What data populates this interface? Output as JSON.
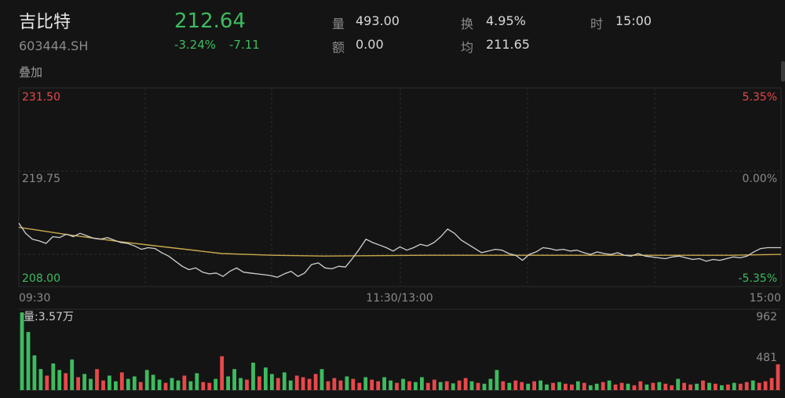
{
  "header": {
    "name": "吉比特",
    "code": "603444.SH",
    "price": "212.64",
    "change_pct": "-3.24%",
    "change_abs": "-7.11",
    "stats": [
      {
        "label": "量",
        "value": "493.00"
      },
      {
        "label": "换",
        "value": "4.95%"
      },
      {
        "label": "时",
        "value": "15:00"
      },
      {
        "label": "额",
        "value": "0.00"
      },
      {
        "label": "均",
        "value": "211.65"
      }
    ],
    "overlay_label": "叠加"
  },
  "colors": {
    "up": "#e8484a",
    "down": "#3dbb5f",
    "price_line": "#d0d0d0",
    "avg_line": "#c9a94b",
    "grid": "#2c2c2c",
    "axis_text": "#8a8a8a"
  },
  "chart_data": [
    {
      "type": "line",
      "x_range": [
        "09:30",
        "15:00"
      ],
      "xticks": [
        "09:30",
        "11:30/13:00",
        "15:00"
      ],
      "ylim": [
        208.0,
        231.5
      ],
      "yticks_left": [
        "231.50",
        "219.75",
        "208.00"
      ],
      "yticks_right": [
        "5.35%",
        "0.00%",
        "-5.35%"
      ],
      "grid": true,
      "series": [
        {
          "role": "price",
          "values": [
            215.5,
            214.3,
            213.6,
            213.4,
            213.1,
            213.9,
            213.8,
            214.2,
            213.9,
            214.3,
            214.0,
            213.7,
            213.6,
            213.8,
            213.5,
            213.2,
            213.1,
            212.8,
            212.4,
            212.6,
            212.5,
            212.0,
            211.6,
            211.0,
            210.4,
            210.0,
            210.2,
            209.7,
            209.5,
            209.6,
            209.2,
            209.8,
            210.2,
            209.7,
            209.6,
            209.5,
            209.4,
            209.3,
            209.1,
            209.5,
            209.8,
            209.2,
            209.6,
            210.6,
            210.8,
            210.2,
            210.1,
            210.4,
            210.3,
            211.3,
            212.4,
            213.6,
            213.2,
            212.9,
            212.6,
            212.2,
            212.7,
            212.3,
            212.6,
            213.0,
            212.8,
            213.2,
            213.9,
            214.8,
            214.3,
            213.5,
            213.0,
            212.5,
            212.0,
            212.2,
            212.4,
            212.3,
            211.9,
            211.7,
            211.1,
            211.8,
            212.1,
            212.6,
            212.5,
            212.3,
            212.4,
            212.2,
            212.3,
            212.0,
            211.8,
            212.1,
            211.9,
            211.8,
            212.0,
            211.7,
            211.6,
            211.9,
            211.6,
            211.5,
            211.4,
            211.3,
            211.5,
            211.6,
            211.4,
            211.2,
            211.3,
            211.0,
            211.2,
            211.1,
            211.3,
            211.5,
            211.4,
            211.6,
            212.1,
            212.5,
            212.6,
            212.6,
            212.6
          ]
        },
        {
          "role": "average",
          "values": [
            215.0,
            214.1,
            213.3,
            212.6,
            211.9,
            211.7,
            211.6,
            211.65,
            211.7,
            211.7,
            211.7,
            211.7,
            211.7,
            211.7,
            211.7,
            211.8
          ]
        }
      ]
    },
    {
      "type": "bar",
      "label": "量:3.57万",
      "yticks": [
        "962",
        "481"
      ],
      "ylim": [
        0,
        962
      ],
      "direction": [
        "down",
        "down",
        "down",
        "down",
        "up",
        "down",
        "down",
        "up",
        "down",
        "up",
        "down",
        "down",
        "up",
        "up",
        "down",
        "down",
        "up",
        "down",
        "down",
        "up",
        "down",
        "down",
        "down",
        "up",
        "down",
        "down",
        "up",
        "down",
        "down",
        "up",
        "up",
        "down",
        "up",
        "down",
        "down",
        "down",
        "up",
        "down",
        "up",
        "down",
        "down",
        "up",
        "down",
        "down",
        "up",
        "up",
        "up",
        "up",
        "down",
        "up",
        "up",
        "up",
        "down",
        "up",
        "up",
        "down",
        "up",
        "up",
        "down",
        "down",
        "up",
        "down",
        "up",
        "down",
        "down",
        "up",
        "up",
        "down",
        "up",
        "down",
        "up",
        "up",
        "down",
        "up",
        "down",
        "down",
        "down",
        "up",
        "down",
        "up",
        "up",
        "down",
        "up",
        "down",
        "down",
        "up",
        "down",
        "up",
        "up",
        "down",
        "up",
        "down",
        "down",
        "up",
        "down",
        "up",
        "up",
        "down",
        "up",
        "up",
        "down",
        "up",
        "down",
        "up",
        "up",
        "down",
        "up",
        "up",
        "down",
        "up",
        "down",
        "up",
        "down",
        "up",
        "down",
        "up",
        "up",
        "down",
        "up",
        "up",
        "up",
        "up"
      ],
      "values": [
        962,
        720,
        430,
        260,
        180,
        330,
        250,
        210,
        380,
        160,
        200,
        140,
        260,
        120,
        180,
        110,
        220,
        140,
        170,
        100,
        250,
        190,
        130,
        90,
        150,
        120,
        180,
        110,
        210,
        100,
        90,
        140,
        420,
        170,
        260,
        150,
        130,
        340,
        170,
        280,
        200,
        150,
        220,
        120,
        180,
        160,
        140,
        200,
        260,
        110,
        150,
        120,
        170,
        140,
        90,
        160,
        130,
        110,
        160,
        120,
        90,
        140,
        110,
        100,
        160,
        90,
        130,
        100,
        110,
        85,
        120,
        150,
        110,
        90,
        80,
        140,
        250,
        110,
        90,
        120,
        100,
        80,
        110,
        120,
        70,
        90,
        100,
        80,
        70,
        110,
        90,
        60,
        80,
        100,
        120,
        70,
        90,
        80,
        60,
        110,
        70,
        90,
        100,
        80,
        60,
        140,
        90,
        70,
        80,
        120,
        90,
        80,
        60,
        70,
        90,
        80,
        100,
        120,
        90,
        110,
        150,
        320
      ]
    }
  ]
}
